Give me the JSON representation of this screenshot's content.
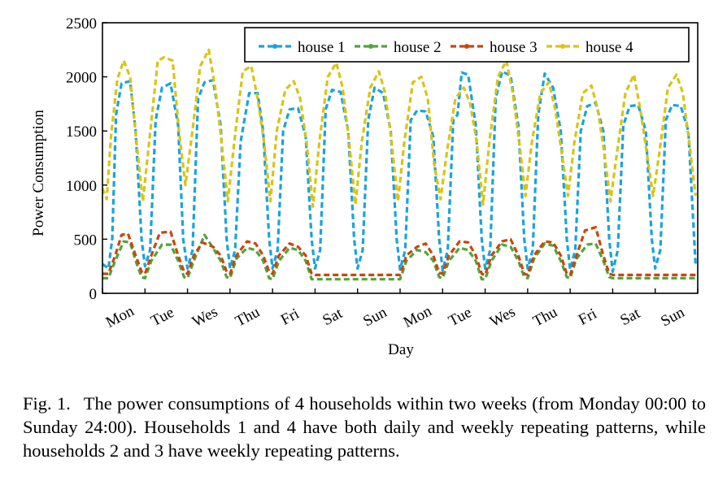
{
  "chart_data": {
    "type": "line",
    "xlabel": "Day",
    "ylabel": "Power Consumption",
    "ylim": [
      0,
      2500
    ],
    "yticks": [
      0,
      500,
      1000,
      1500,
      2000,
      2500
    ],
    "xlim": [
      0,
      14
    ],
    "day_labels": [
      "Mon",
      "Tue",
      "Wes",
      "Thu",
      "Fri",
      "Sat",
      "Sun",
      "Mon",
      "Tue",
      "Wes",
      "Thu",
      "Fri",
      "Sat",
      "Sun"
    ],
    "legend_position": "top",
    "series": [
      {
        "name": "house 1",
        "color": "#1aa3dd",
        "x": [
          0.0,
          0.14,
          0.23,
          0.32,
          0.45,
          0.65,
          0.78,
          0.92,
          1.0,
          1.12,
          1.25,
          1.4,
          1.6,
          1.78,
          1.9,
          2.0,
          2.12,
          2.25,
          2.4,
          2.6,
          2.78,
          2.92,
          3.0,
          3.12,
          3.25,
          3.45,
          3.65,
          3.78,
          3.92,
          4.0,
          4.12,
          4.25,
          4.4,
          4.6,
          4.78,
          4.92,
          5.0,
          5.12,
          5.25,
          5.4,
          5.6,
          5.78,
          5.92,
          6.0,
          6.12,
          6.25,
          6.4,
          6.6,
          6.78,
          6.92,
          7.0,
          7.12,
          7.25,
          7.4,
          7.6,
          7.78,
          7.92,
          8.0,
          8.12,
          8.25,
          8.35,
          8.45,
          8.6,
          8.78,
          8.92,
          9.0,
          9.12,
          9.25,
          9.4,
          9.6,
          9.78,
          9.92,
          10.0,
          10.12,
          10.25,
          10.4,
          10.6,
          10.78,
          10.92,
          11.0,
          11.12,
          11.25,
          11.4,
          11.6,
          11.78,
          11.92,
          12.0,
          12.12,
          12.25,
          12.4,
          12.6,
          12.78,
          12.92,
          13.0,
          13.12,
          13.25,
          13.4,
          13.6,
          13.78,
          13.95
        ],
        "y": [
          270,
          230,
          500,
          1650,
          1940,
          1960,
          1500,
          500,
          250,
          400,
          1600,
          1900,
          1940,
          1550,
          500,
          230,
          400,
          1800,
          1950,
          1970,
          1550,
          500,
          230,
          400,
          1400,
          1850,
          1850,
          1500,
          500,
          230,
          400,
          1500,
          1700,
          1710,
          1450,
          500,
          230,
          400,
          1700,
          1880,
          1860,
          1500,
          500,
          230,
          400,
          1600,
          1900,
          1850,
          1500,
          500,
          220,
          400,
          1600,
          1690,
          1680,
          1450,
          500,
          210,
          400,
          1600,
          1650,
          2040,
          2020,
          1550,
          500,
          230,
          400,
          1800,
          2050,
          2010,
          1550,
          500,
          230,
          400,
          1650,
          2030,
          1900,
          1500,
          500,
          220,
          400,
          1500,
          1730,
          1760,
          1500,
          500,
          200,
          400,
          1550,
          1730,
          1740,
          1500,
          500,
          230,
          400,
          1600,
          1740,
          1730,
          1500,
          260
        ]
      },
      {
        "name": "house 2",
        "color": "#4fa53a",
        "x": [
          0.0,
          0.14,
          0.3,
          0.5,
          0.65,
          0.78,
          0.92,
          1.0,
          1.15,
          1.4,
          1.6,
          1.78,
          1.92,
          2.0,
          2.15,
          2.4,
          2.6,
          2.78,
          2.92,
          3.0,
          3.15,
          3.4,
          3.6,
          3.78,
          3.92,
          4.0,
          4.15,
          4.4,
          4.6,
          4.78,
          4.92,
          5.0,
          5.5,
          5.92,
          6.0,
          6.5,
          6.92,
          7.0,
          7.15,
          7.4,
          7.6,
          7.78,
          7.92,
          8.0,
          8.15,
          8.4,
          8.6,
          8.78,
          8.92,
          9.0,
          9.15,
          9.4,
          9.6,
          9.78,
          9.92,
          10.0,
          10.15,
          10.4,
          10.6,
          10.78,
          10.92,
          11.0,
          11.15,
          11.4,
          11.6,
          11.78,
          11.92,
          12.0,
          12.5,
          12.92,
          13.0,
          13.5,
          13.95
        ],
        "y": [
          140,
          140,
          300,
          480,
          470,
          300,
          150,
          140,
          300,
          450,
          450,
          300,
          150,
          140,
          300,
          540,
          420,
          300,
          150,
          140,
          320,
          420,
          400,
          300,
          140,
          130,
          300,
          420,
          400,
          300,
          130,
          130,
          130,
          130,
          130,
          130,
          130,
          130,
          300,
          400,
          380,
          300,
          150,
          140,
          300,
          420,
          400,
          300,
          130,
          130,
          300,
          450,
          430,
          300,
          150,
          140,
          320,
          460,
          440,
          300,
          150,
          140,
          320,
          450,
          460,
          300,
          150,
          140,
          140,
          140,
          140,
          140,
          140
        ]
      },
      {
        "name": "house 3",
        "color": "#c8470c",
        "x": [
          0.0,
          0.14,
          0.3,
          0.45,
          0.6,
          0.78,
          0.92,
          1.0,
          1.15,
          1.35,
          1.6,
          1.78,
          1.92,
          2.0,
          2.15,
          2.35,
          2.6,
          2.78,
          2.92,
          3.0,
          3.15,
          3.4,
          3.6,
          3.78,
          3.92,
          4.0,
          4.15,
          4.4,
          4.6,
          4.78,
          4.92,
          5.0,
          5.5,
          5.92,
          6.0,
          6.5,
          6.92,
          7.0,
          7.15,
          7.4,
          7.6,
          7.78,
          7.92,
          8.0,
          8.15,
          8.4,
          8.6,
          8.78,
          8.92,
          9.0,
          9.15,
          9.4,
          9.6,
          9.78,
          9.92,
          10.0,
          10.15,
          10.4,
          10.6,
          10.78,
          10.92,
          11.0,
          11.15,
          11.35,
          11.6,
          11.78,
          11.92,
          12.0,
          12.5,
          12.92,
          13.0,
          13.5,
          13.95
        ],
        "y": [
          180,
          180,
          350,
          540,
          550,
          350,
          200,
          180,
          350,
          560,
          570,
          350,
          200,
          180,
          350,
          470,
          430,
          350,
          200,
          180,
          350,
          480,
          460,
          350,
          200,
          180,
          350,
          460,
          430,
          350,
          180,
          170,
          170,
          170,
          170,
          170,
          170,
          170,
          350,
          430,
          460,
          350,
          190,
          180,
          350,
          480,
          470,
          350,
          180,
          170,
          350,
          480,
          500,
          350,
          180,
          170,
          350,
          480,
          470,
          350,
          180,
          170,
          350,
          580,
          610,
          350,
          180,
          170,
          170,
          170,
          170,
          170,
          170
        ]
      },
      {
        "name": "house 4",
        "color": "#d9c414",
        "x": [
          0.0,
          0.1,
          0.2,
          0.35,
          0.5,
          0.65,
          0.8,
          0.95,
          1.1,
          1.3,
          1.45,
          1.65,
          1.8,
          1.95,
          2.1,
          2.3,
          2.5,
          2.65,
          2.8,
          2.95,
          3.1,
          3.3,
          3.5,
          3.65,
          3.8,
          3.95,
          4.1,
          4.3,
          4.5,
          4.65,
          4.8,
          4.95,
          5.1,
          5.3,
          5.5,
          5.65,
          5.8,
          5.95,
          6.1,
          6.3,
          6.5,
          6.65,
          6.8,
          6.95,
          7.1,
          7.3,
          7.5,
          7.65,
          7.8,
          7.95,
          8.1,
          8.3,
          8.5,
          8.65,
          8.8,
          8.95,
          9.1,
          9.3,
          9.5,
          9.65,
          9.8,
          9.95,
          10.1,
          10.3,
          10.5,
          10.65,
          10.8,
          10.95,
          11.1,
          11.3,
          11.5,
          11.65,
          11.8,
          11.95,
          12.1,
          12.3,
          12.5,
          12.65,
          12.8,
          12.95,
          13.1,
          13.3,
          13.5,
          13.65,
          13.8,
          13.95
        ],
        "y": [
          970,
          870,
          1450,
          1980,
          2150,
          2000,
          1400,
          850,
          1400,
          2150,
          2180,
          2150,
          1500,
          1000,
          1450,
          2100,
          2250,
          1900,
          1400,
          850,
          1400,
          2050,
          2100,
          1800,
          1400,
          850,
          1500,
          1880,
          1960,
          1800,
          1400,
          800,
          1400,
          2000,
          2130,
          1900,
          1400,
          820,
          1400,
          1900,
          2050,
          1850,
          1400,
          850,
          1400,
          1950,
          2000,
          1800,
          1200,
          870,
          1300,
          1800,
          1900,
          1750,
          1400,
          820,
          1400,
          2000,
          2150,
          1850,
          1400,
          900,
          1400,
          1850,
          1950,
          1700,
          1300,
          900,
          1400,
          1850,
          1920,
          1700,
          1300,
          850,
          1300,
          1850,
          2020,
          1700,
          1300,
          900,
          1300,
          1900,
          2020,
          1850,
          1400,
          900
        ]
      }
    ]
  },
  "caption": {
    "label": "Fig. 1.",
    "text": "The power consumptions of 4 households within two weeks (from Monday 00:00 to Sunday 24:00). Households 1 and 4 have both daily and weekly repeating patterns, while households 2 and 3 have weekly repeating patterns."
  }
}
